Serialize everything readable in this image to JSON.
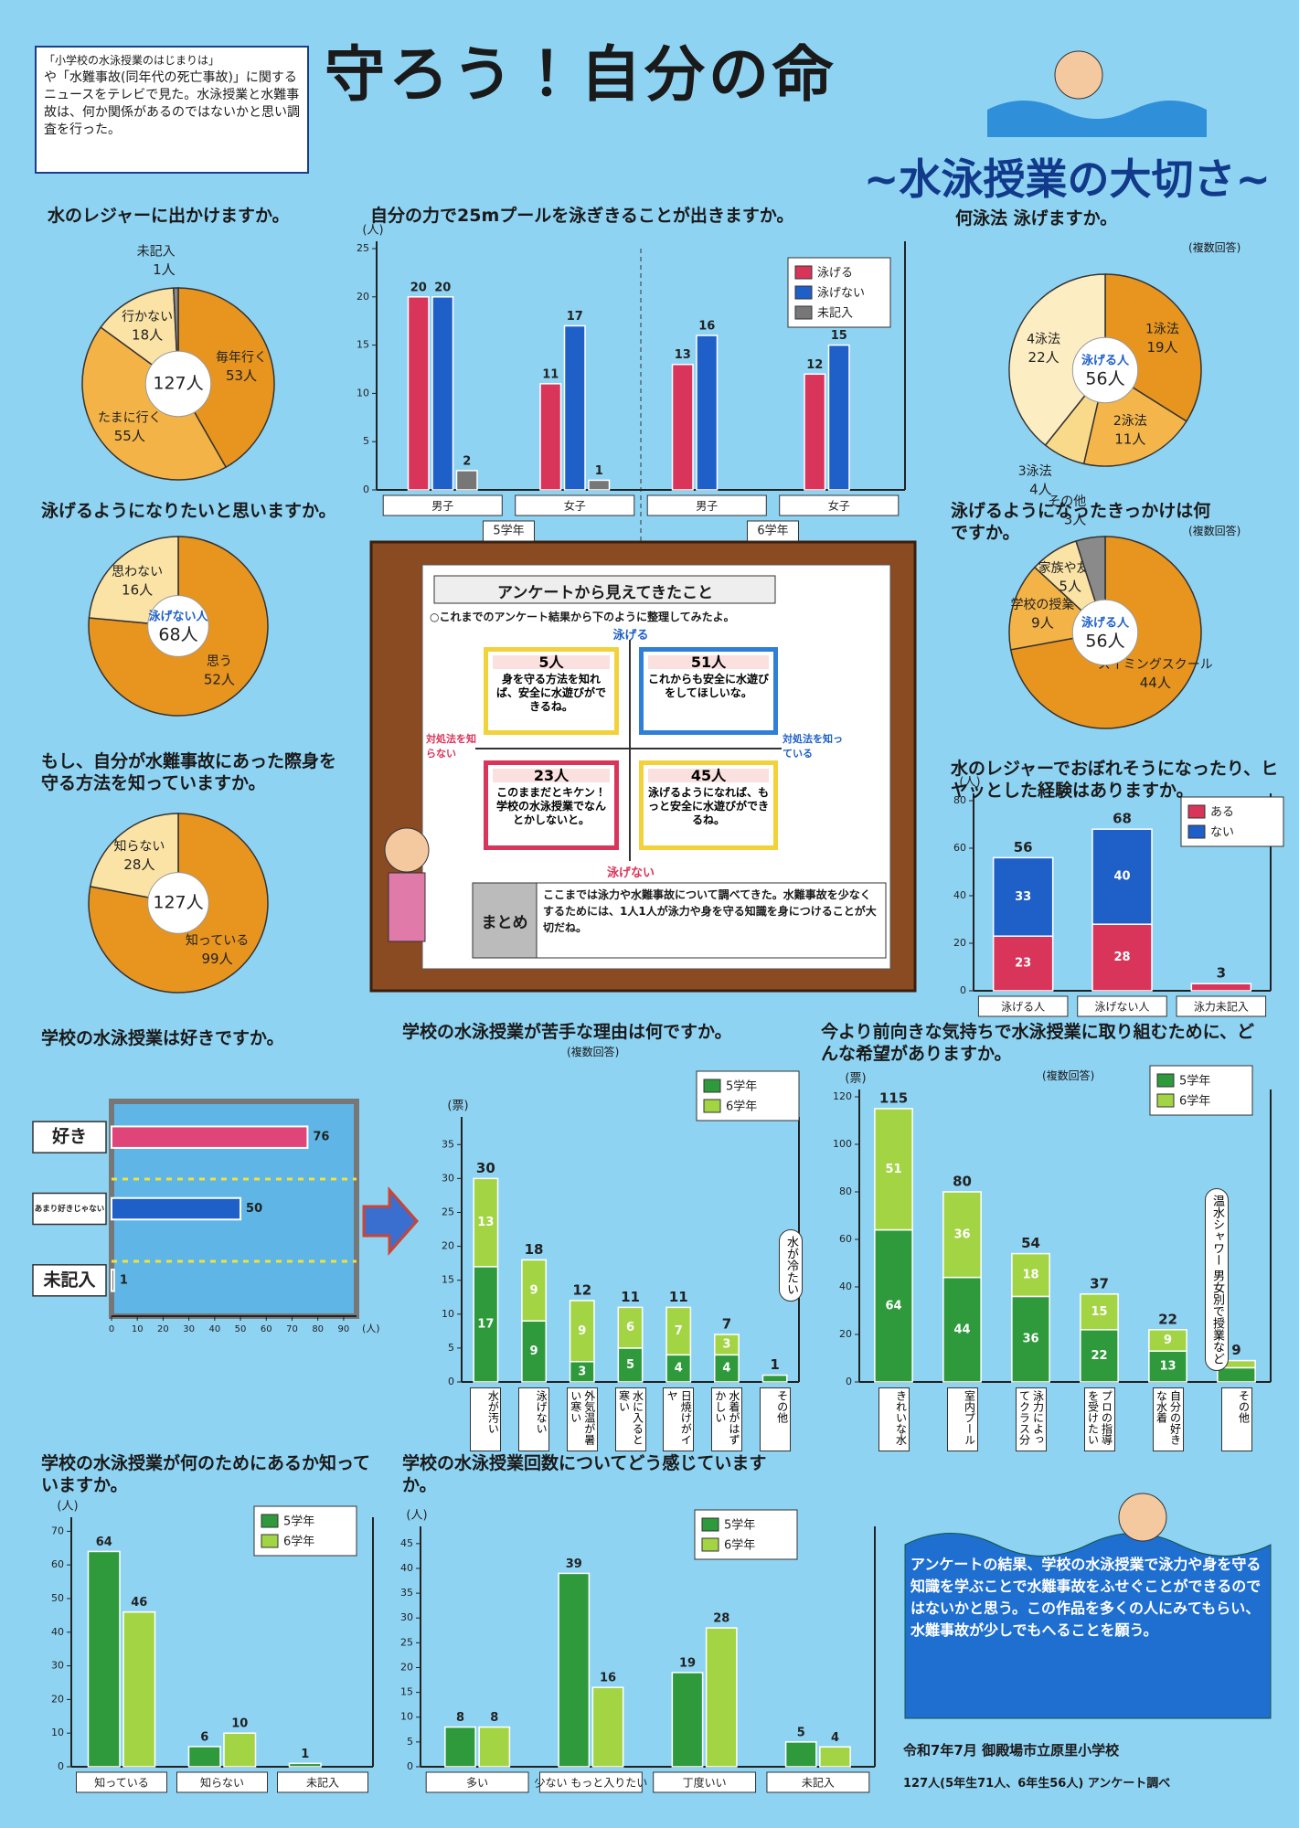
{
  "header": {
    "title": "守ろう！自分の命",
    "subtitle": "~水泳授業の大切さ~"
  },
  "intro": {
    "heading": "「小学校の水泳授業のはじまりは」",
    "text": "や「水難事故(同年代の死亡事故)」に関するニュースをテレビで見た。水泳授業と水難事故は、何か関係があるのではないかと思い調査を行った。"
  },
  "chart_data": [
    {
      "type": "pie",
      "title": "水のレジャーに出かけますか。",
      "categories": [
        "毎年行く",
        "たまに行く",
        "行かない",
        "未記入"
      ],
      "values": [
        53,
        55,
        18,
        1
      ],
      "value_labels": [
        "53人",
        "55人",
        "18人",
        "1人"
      ],
      "colors": [
        "#e8951f",
        "#f3b347",
        "#fbe3a6",
        "#8a8a8a"
      ],
      "center_labels": [
        "127人"
      ]
    },
    {
      "type": "bar",
      "title": "自分の力で25mプールを泳ぎきることが出きますか。",
      "y_unit": "(人)",
      "categories": [
        "男子",
        "女子",
        "男子",
        "女子"
      ],
      "group_labels": [
        "5学年",
        "6学年"
      ],
      "series": [
        {
          "name": "泳げる",
          "color": "#d9345a",
          "values": [
            20,
            11,
            13,
            12
          ]
        },
        {
          "name": "泳げない",
          "color": "#1e5fc8",
          "values": [
            20,
            17,
            16,
            15
          ]
        },
        {
          "name": "未記入",
          "color": "#777777",
          "values": [
            2,
            1,
            null,
            null
          ]
        }
      ],
      "ylim": [
        0,
        25
      ],
      "yticks": [
        0,
        5,
        10,
        15,
        20,
        25
      ]
    },
    {
      "type": "pie",
      "title": "何泳法 泳げますか。",
      "note": "(複数回答)",
      "categories": [
        "1泳法",
        "2泳法",
        "3泳法",
        "4泳法"
      ],
      "values": [
        19,
        11,
        4,
        22
      ],
      "value_labels": [
        "19人",
        "11人",
        "4人",
        "22人"
      ],
      "colors": [
        "#e8951f",
        "#f4b64a",
        "#f9d98a",
        "#fcedc2"
      ],
      "center_labels": [
        "泳げる人",
        "56人"
      ]
    },
    {
      "type": "pie",
      "title": "泳げるようになりたいと思いますか。",
      "categories": [
        "思う",
        "思わない"
      ],
      "values": [
        52,
        16
      ],
      "value_labels": [
        "52人",
        "16人"
      ],
      "colors": [
        "#e8951f",
        "#fbe3a6"
      ],
      "center_labels": [
        "泳げない人",
        "68人"
      ]
    },
    {
      "type": "pie",
      "title": "泳げるようになったきっかけは何ですか。",
      "note": "(複数回答)",
      "categories": [
        "スイミングスクール",
        "学校の授業",
        "家族や友達",
        "その他"
      ],
      "values": [
        44,
        9,
        5,
        3
      ],
      "value_labels": [
        "44人",
        "9人",
        "5人",
        "3人"
      ],
      "colors": [
        "#e8951f",
        "#f3b347",
        "#fbe3a6",
        "#8a8a8a"
      ],
      "center_labels": [
        "泳げる人",
        "56人"
      ]
    },
    {
      "type": "pie",
      "title": "もし、自分が水難事故にあった際身を守る方法を知っていますか。",
      "categories": [
        "知っている",
        "知らない"
      ],
      "values": [
        99,
        28
      ],
      "value_labels": [
        "99人",
        "28人"
      ],
      "colors": [
        "#e8951f",
        "#fbe3a6"
      ],
      "center_labels": [
        "127人"
      ]
    },
    {
      "type": "bar",
      "stacked": true,
      "title": "水のレジャーでおぼれそうになったり、ヒヤッとした経験はありますか。",
      "y_unit": "(人)",
      "categories": [
        "泳げる人",
        "泳げない人",
        "泳力未記入"
      ],
      "series": [
        {
          "name": "ある",
          "color": "#d9345a",
          "values": [
            23,
            28,
            3
          ]
        },
        {
          "name": "ない",
          "color": "#1e5fc8",
          "values": [
            33,
            40,
            null
          ]
        }
      ],
      "totals": [
        56,
        68,
        3
      ],
      "ylim": [
        0,
        80
      ],
      "yticks": [
        0,
        20,
        40,
        60,
        80
      ]
    },
    {
      "type": "bar",
      "orientation": "horizontal",
      "title": "学校の水泳授業は好きですか。",
      "x_unit": "(人)",
      "categories": [
        "好き",
        "あまり好きじゃない",
        "未記入"
      ],
      "values": [
        76,
        50,
        1
      ],
      "colors": [
        "#e0457a",
        "#1e5fc8",
        "#555555"
      ],
      "xlim": [
        0,
        95
      ],
      "xticks": [
        0,
        10,
        20,
        30,
        40,
        50,
        60,
        70,
        80,
        90
      ]
    },
    {
      "type": "bar",
      "stacked": true,
      "title": "学校の水泳授業が苦手な理由は何ですか。",
      "note": "(複数回答)",
      "y_unit": "(票)",
      "categories": [
        "水が汚い",
        "泳げない",
        "外気温が暑い寒い",
        "水に入ると寒い",
        "日焼けがイヤ",
        "水着がはずかしい",
        "その他"
      ],
      "series": [
        {
          "name": "5学年",
          "color": "#2e9a3c",
          "values": [
            17,
            9,
            3,
            5,
            4,
            4,
            1
          ]
        },
        {
          "name": "6学年",
          "color": "#a3d444",
          "values": [
            13,
            9,
            9,
            6,
            7,
            3,
            null
          ]
        }
      ],
      "totals": [
        30,
        18,
        12,
        11,
        11,
        7,
        1
      ],
      "annotation": "水が冷たい",
      "ylim": [
        0,
        38
      ],
      "yticks": [
        0,
        5,
        10,
        15,
        20,
        25,
        30,
        35
      ]
    },
    {
      "type": "bar",
      "stacked": true,
      "title": "今より前向きな気持ちで水泳授業に取り組むために、どんな希望がありますか。",
      "note": "(複数回答)",
      "y_unit": "(票)",
      "categories": [
        "きれいな水",
        "室内プール",
        "泳力によってクラス分け",
        "プロの指導を受けたい",
        "自分の好きな水着",
        "その他"
      ],
      "series": [
        {
          "name": "5学年",
          "color": "#2e9a3c",
          "values": [
            64,
            44,
            36,
            22,
            13,
            6
          ]
        },
        {
          "name": "6学年",
          "color": "#a3d444",
          "values": [
            51,
            36,
            18,
            15,
            9,
            3
          ]
        }
      ],
      "totals": [
        115,
        80,
        54,
        37,
        22,
        9
      ],
      "annotation": "温水シャワー 男女別で授業など",
      "ylim": [
        0,
        120
      ],
      "yticks": [
        0,
        20,
        40,
        60,
        80,
        100,
        120
      ]
    },
    {
      "type": "bar",
      "title": "学校の水泳授業が何のためにあるか知っていますか。",
      "y_unit": "(人)",
      "categories": [
        "知っている",
        "知らない",
        "未記入"
      ],
      "series": [
        {
          "name": "5学年",
          "color": "#2e9a3c",
          "values": [
            64,
            6,
            1
          ]
        },
        {
          "name": "6学年",
          "color": "#a3d444",
          "values": [
            46,
            10,
            null
          ]
        }
      ],
      "ylim": [
        0,
        72
      ],
      "yticks": [
        0,
        10,
        20,
        30,
        40,
        50,
        60,
        70
      ]
    },
    {
      "type": "bar",
      "title": "学校の水泳授業回数についてどう感じていますか。",
      "y_unit": "(人)",
      "categories": [
        "多い",
        "少ない もっと入りたい",
        "丁度いい",
        "未記入"
      ],
      "series": [
        {
          "name": "5学年",
          "color": "#2e9a3c",
          "values": [
            8,
            39,
            19,
            5
          ]
        },
        {
          "name": "6学年",
          "color": "#a3d444",
          "values": [
            8,
            16,
            28,
            4
          ]
        }
      ],
      "ylim": [
        0,
        47
      ],
      "yticks": [
        0,
        5,
        10,
        15,
        20,
        25,
        30,
        35,
        40,
        45
      ]
    }
  ],
  "board": {
    "title": "アンケートから見えてきたこと",
    "lead": "○これまでのアンケート結果から下のように整理してみたよ。",
    "axis": {
      "top": "泳げる",
      "bottom": "泳げない",
      "left": "対処法を知らない",
      "right": "対処法を知っている"
    },
    "quadrants": [
      {
        "count": "5人",
        "text": "身を守る方法を知れば、安全に水遊びができるね。"
      },
      {
        "count": "51人",
        "text": "これからも安全に水遊びをしてほしいな。"
      },
      {
        "count": "23人",
        "text": "このままだとキケン！学校の水泳授業でなんとかしないと。"
      },
      {
        "count": "45人",
        "text": "泳げるようになれば、もっと安全に水遊びができるね。"
      }
    ],
    "summary_label": "まとめ",
    "summary": "ここまでは泳力や水難事故について調べてきた。水難事故を少なくするためには、1人1人が泳力や身を守る知識を身につけることが大切だね。"
  },
  "conclusion": "アンケートの結果、学校の水泳授業で泳力や身を守る知識を学ぶことで水難事故をふせぐことができるのではないかと思う。この作品を多くの人にみてもらい、水難事故が少しでもへることを願う。",
  "footer": {
    "line1": "令和7年7月 御殿場市立原里小学校",
    "line2": "127人(5年生71人、6年生56人) アンケート調べ"
  }
}
